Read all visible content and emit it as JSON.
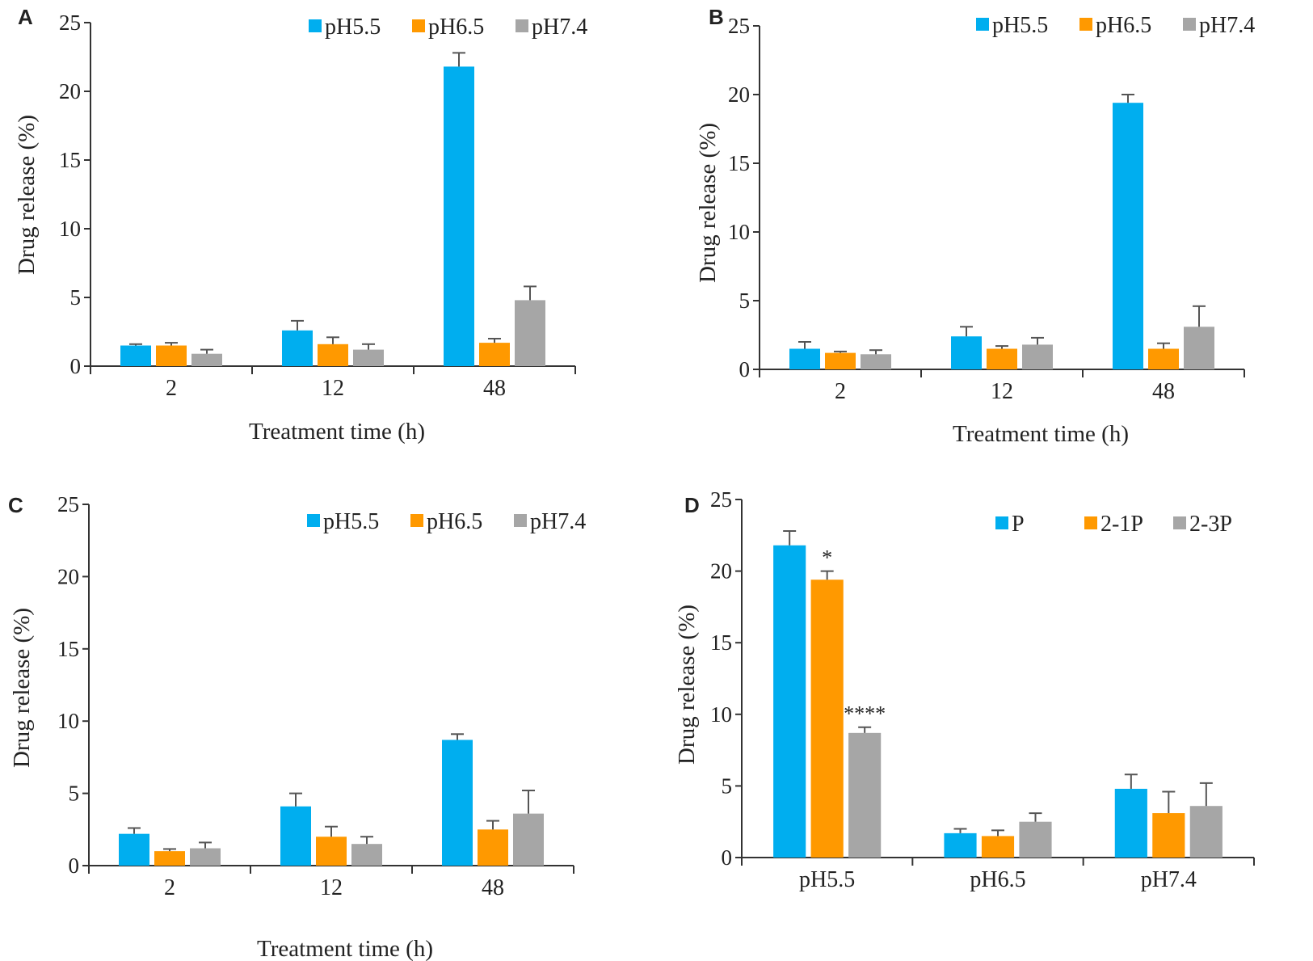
{
  "colors": {
    "blue": "#00AEEF",
    "orange": "#FF9900",
    "gray": "#A6A6A6",
    "axis": "#333333",
    "error": "#555555"
  },
  "chart_data": [
    {
      "panel": "A",
      "type": "bar",
      "categories": [
        "2",
        "12",
        "48"
      ],
      "xlabel": "Treatment time (h)",
      "ylabel": "Drug release (%)",
      "ylim": [
        0,
        25
      ],
      "yticks": [
        "0",
        "5",
        "10",
        "15",
        "20",
        "25"
      ],
      "legend_position": "top-right",
      "series": [
        {
          "name": "pH5.5",
          "color": "#00AEEF",
          "values": [
            1.5,
            2.6,
            21.8
          ],
          "errors": [
            0.1,
            0.7,
            1.0
          ]
        },
        {
          "name": "pH6.5",
          "color": "#FF9900",
          "values": [
            1.5,
            1.6,
            1.7
          ],
          "errors": [
            0.2,
            0.5,
            0.3
          ]
        },
        {
          "name": "pH7.4",
          "color": "#A6A6A6",
          "values": [
            0.9,
            1.2,
            4.8
          ],
          "errors": [
            0.3,
            0.4,
            1.0
          ]
        }
      ],
      "annotations": []
    },
    {
      "panel": "B",
      "type": "bar",
      "categories": [
        "2",
        "12",
        "48"
      ],
      "xlabel": "Treatment time (h)",
      "ylabel": "Drug release (%)",
      "ylim": [
        0,
        25
      ],
      "yticks": [
        "0",
        "5",
        "10",
        "15",
        "20",
        "25"
      ],
      "legend_position": "top-right",
      "series": [
        {
          "name": "pH5.5",
          "color": "#00AEEF",
          "values": [
            1.5,
            2.4,
            19.4
          ],
          "errors": [
            0.5,
            0.7,
            0.6
          ]
        },
        {
          "name": "pH6.5",
          "color": "#FF9900",
          "values": [
            1.2,
            1.5,
            1.5
          ],
          "errors": [
            0.1,
            0.2,
            0.4
          ]
        },
        {
          "name": "pH7.4",
          "color": "#A6A6A6",
          "values": [
            1.1,
            1.8,
            3.1
          ],
          "errors": [
            0.3,
            0.5,
            1.5
          ]
        }
      ],
      "annotations": []
    },
    {
      "panel": "C",
      "type": "bar",
      "categories": [
        "2",
        "12",
        "48"
      ],
      "xlabel": "Treatment time (h)",
      "ylabel": "Drug release (%)",
      "ylim": [
        0,
        25
      ],
      "yticks": [
        "0",
        "5",
        "10",
        "15",
        "20",
        "25"
      ],
      "legend_position": "top-right",
      "series": [
        {
          "name": "pH5.5",
          "color": "#00AEEF",
          "values": [
            2.2,
            4.1,
            8.7
          ],
          "errors": [
            0.4,
            0.9,
            0.4
          ]
        },
        {
          "name": "pH6.5",
          "color": "#FF9900",
          "values": [
            1.0,
            2.0,
            2.5
          ],
          "errors": [
            0.15,
            0.7,
            0.6
          ]
        },
        {
          "name": "pH7.4",
          "color": "#A6A6A6",
          "values": [
            1.2,
            1.5,
            3.6
          ],
          "errors": [
            0.4,
            0.5,
            1.6
          ]
        }
      ],
      "annotations": []
    },
    {
      "panel": "D",
      "type": "bar",
      "categories": [
        "pH5.5",
        "pH6.5",
        "pH7.4"
      ],
      "xlabel": "",
      "ylabel": "Drug release (%)",
      "ylim": [
        0,
        25
      ],
      "yticks": [
        "0",
        "5",
        "10",
        "15",
        "20",
        "25"
      ],
      "legend_position": "top-right",
      "series": [
        {
          "name": "P",
          "color": "#00AEEF",
          "values": [
            21.8,
            1.7,
            4.8
          ],
          "errors": [
            1.0,
            0.3,
            1.0
          ]
        },
        {
          "name": "2-1P",
          "color": "#FF9900",
          "values": [
            19.4,
            1.5,
            3.1
          ],
          "errors": [
            0.6,
            0.4,
            1.5
          ]
        },
        {
          "name": "2-3P",
          "color": "#A6A6A6",
          "values": [
            8.7,
            2.5,
            3.6
          ],
          "errors": [
            0.4,
            0.6,
            1.6
          ]
        }
      ],
      "annotations": [
        {
          "text": "*",
          "series": 1,
          "category": 0
        },
        {
          "text": "****",
          "series": 2,
          "category": 0
        }
      ]
    }
  ]
}
